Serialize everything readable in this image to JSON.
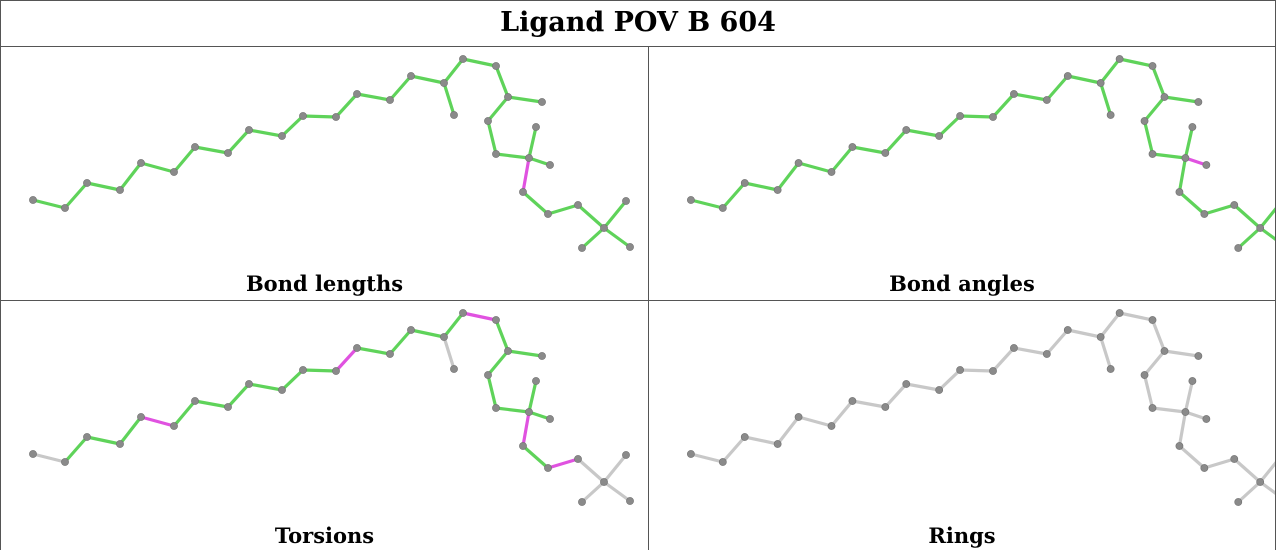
{
  "title": "Ligand POV B 604",
  "panels": [
    {
      "caption": "Bond lengths",
      "mode": "lengths"
    },
    {
      "caption": "Bond angles",
      "mode": "angles"
    },
    {
      "caption": "Torsions",
      "mode": "torsions"
    },
    {
      "caption": "Rings",
      "mode": "rings"
    }
  ],
  "colors": {
    "ok": "#5fd35a",
    "outlier": "#e052e0",
    "neutral": "#c8c8c8",
    "atom": "#8a8a8a"
  }
}
